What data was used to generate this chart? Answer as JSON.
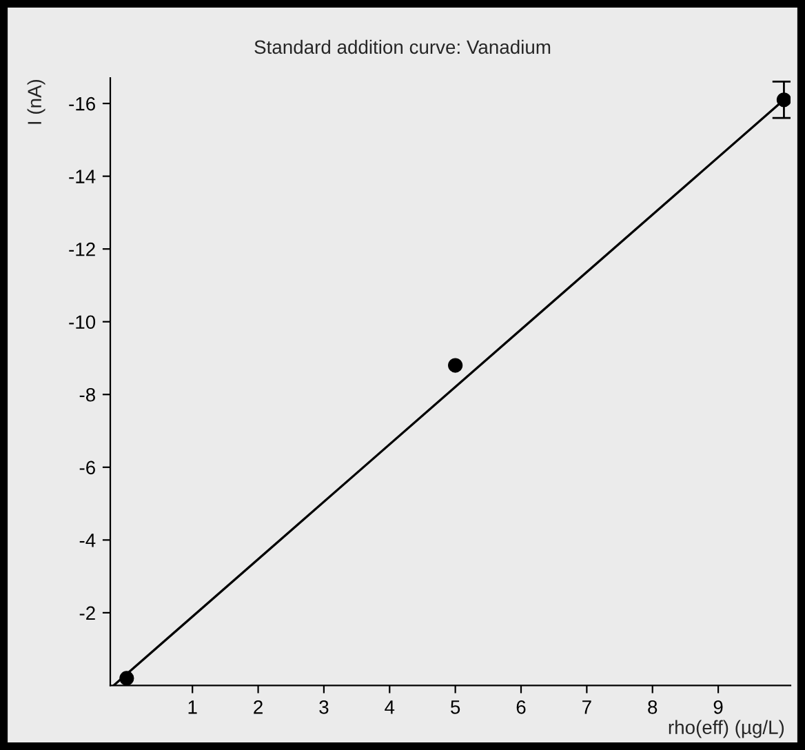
{
  "chart_data": {
    "type": "scatter",
    "title": "Standard addition curve: Vanadium",
    "xlabel": "rho(eff) (µg/L)",
    "ylabel": "I (nA)",
    "xlim": [
      -0.25,
      10.1
    ],
    "xticks": [
      1,
      2,
      3,
      4,
      5,
      6,
      7,
      8,
      9
    ],
    "ylim": [
      0,
      -16.7
    ],
    "yticks": [
      -2,
      -4,
      -6,
      -8,
      -10,
      -12,
      -14,
      -16
    ],
    "grid": false,
    "marker": "circle",
    "series": [
      {
        "color": "#000000",
        "x": [
          0,
          5,
          10
        ],
        "values": [
          -0.2,
          -8.8,
          -16.1
        ],
        "errors": [
          null,
          null,
          0.5
        ]
      },
      {
        "type": "line",
        "color": "#000000",
        "x": [
          -0.2,
          10
        ],
        "values": [
          0,
          -16.1
        ],
        "marker": "none",
        "line_style": "solid"
      }
    ]
  }
}
